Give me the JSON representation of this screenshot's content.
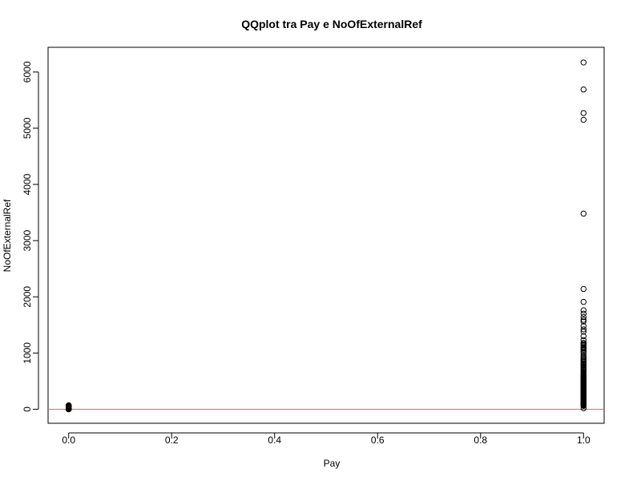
{
  "chart_data": {
    "type": "scatter",
    "title": "QQplot tra Pay e NoOfExternalRef",
    "xlabel": "Pay",
    "ylabel": "NoOfExternalRef",
    "xlim": [
      -0.04,
      1.04
    ],
    "ylim": [
      -250,
      6440
    ],
    "x_ticks": [
      0.0,
      0.2,
      0.4,
      0.6,
      0.8,
      1.0
    ],
    "x_tick_labels": [
      "0.0",
      "0.2",
      "0.4",
      "0.6",
      "0.8",
      "1.0"
    ],
    "y_ticks": [
      0,
      1000,
      2000,
      3000,
      4000,
      5000,
      6000
    ],
    "y_tick_labels": [
      "0",
      "1000",
      "2000",
      "3000",
      "4000",
      "5000",
      "6000"
    ],
    "grid": false,
    "marker": "open-circle",
    "reference_line": {
      "y": 0,
      "color": "#ff5a5a"
    },
    "series": [
      {
        "x": [
          0,
          0,
          0,
          0,
          0,
          0,
          0,
          0,
          0,
          0,
          0,
          0,
          0,
          0,
          0,
          0,
          0,
          0,
          0,
          0,
          0,
          0,
          0,
          0,
          0,
          0,
          0,
          0,
          0,
          0,
          0,
          0,
          0,
          0,
          0,
          0,
          0,
          0,
          0,
          0,
          0,
          0,
          0,
          0,
          0,
          0,
          0,
          0,
          0,
          0,
          0,
          0,
          0,
          0,
          0,
          0,
          0,
          0,
          0,
          0,
          1,
          1,
          1,
          1,
          1,
          1,
          1,
          1,
          1,
          1,
          1,
          1,
          1,
          1,
          1,
          1,
          1,
          1,
          1,
          1,
          1,
          1,
          1,
          1,
          1,
          1,
          1,
          1,
          1,
          1,
          1,
          1,
          1,
          1,
          1,
          1,
          1,
          1,
          1,
          1,
          1,
          1,
          1,
          1,
          1,
          1,
          1,
          1,
          1,
          1,
          1,
          1,
          1,
          1,
          1,
          1,
          1,
          1,
          1,
          1,
          1,
          1,
          1,
          1,
          1,
          1,
          1,
          1,
          1,
          1,
          1,
          1,
          1,
          1,
          1,
          1,
          1,
          1,
          1,
          1,
          1,
          1,
          1,
          1,
          1,
          1,
          1,
          1,
          1,
          1,
          1,
          1,
          1,
          1,
          1,
          1,
          1,
          1,
          1,
          1
        ],
        "y": [
          0,
          1,
          2,
          3,
          4,
          5,
          6,
          7,
          8,
          9,
          10,
          11,
          12,
          13,
          14,
          15,
          16,
          17,
          18,
          19,
          20,
          21,
          22,
          23,
          24,
          25,
          26,
          27,
          28,
          29,
          30,
          31,
          32,
          33,
          34,
          35,
          36,
          37,
          38,
          39,
          40,
          41,
          42,
          43,
          44,
          45,
          46,
          47,
          48,
          49,
          50,
          52,
          54,
          56,
          58,
          60,
          62,
          64,
          67,
          70,
          60,
          70,
          80,
          90,
          100,
          110,
          120,
          130,
          140,
          150,
          160,
          170,
          180,
          190,
          200,
          210,
          220,
          230,
          240,
          250,
          260,
          270,
          280,
          290,
          300,
          310,
          320,
          330,
          340,
          350,
          360,
          370,
          380,
          390,
          400,
          410,
          420,
          430,
          440,
          450,
          460,
          470,
          480,
          490,
          500,
          510,
          520,
          530,
          540,
          550,
          560,
          570,
          580,
          590,
          600,
          610,
          620,
          640,
          660,
          680,
          700,
          720,
          740,
          760,
          780,
          800,
          820,
          840,
          860,
          880,
          900,
          930,
          960,
          1000,
          1030,
          1060,
          1080,
          1100,
          1120,
          1140,
          1160,
          1180,
          1230,
          1300,
          1380,
          1420,
          1480,
          1560,
          1590,
          1640,
          1700,
          1760,
          1910,
          2140,
          3480,
          5150,
          5270,
          5690,
          6170,
          20
        ]
      }
    ]
  }
}
